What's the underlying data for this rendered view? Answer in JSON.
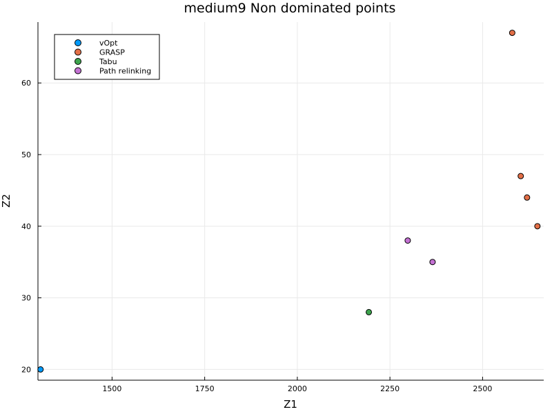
{
  "chart_data": {
    "type": "scatter",
    "title": "medium9 Non dominated points",
    "xlabel": "Z1",
    "ylabel": "Z2",
    "xlim": [
      1300,
      2665
    ],
    "ylim": [
      18.5,
      68.5
    ],
    "xticks": [
      1500,
      1750,
      2000,
      2250,
      2500
    ],
    "yticks": [
      20,
      30,
      40,
      50,
      60
    ],
    "grid": true,
    "legend_position": "top-left",
    "series": [
      {
        "name": "vOpt",
        "color": "#009AFA",
        "points": [
          [
            1307,
            20
          ]
        ]
      },
      {
        "name": "GRASP",
        "color": "#E36F47",
        "points": [
          [
            2580,
            67
          ],
          [
            2603,
            47
          ],
          [
            2620,
            44
          ],
          [
            2648,
            40
          ]
        ]
      },
      {
        "name": "Tabu",
        "color": "#3EA44E",
        "points": [
          [
            2193,
            28
          ]
        ]
      },
      {
        "name": "Path relinking",
        "color": "#C371D2",
        "points": [
          [
            2298,
            38
          ],
          [
            2365,
            35
          ]
        ]
      }
    ]
  }
}
